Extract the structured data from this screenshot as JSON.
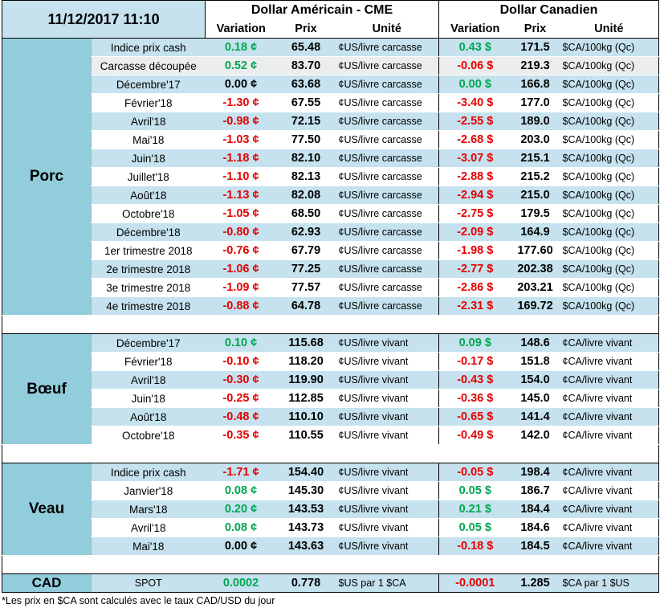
{
  "header": {
    "datetime": "11/12/2017 11:10",
    "usd_title": "Dollar Américain - CME",
    "cad_title": "Dollar Canadien",
    "col_variation": "Variation",
    "col_prix": "Prix",
    "col_unite": "Unité"
  },
  "sections": [
    {
      "name": "Porc",
      "rows": [
        {
          "label": "Indice prix cash",
          "usd_var": "0.18 ¢",
          "usd_sign": "pos",
          "usd_price": "65.48",
          "usd_unit": "¢US/livre carcasse",
          "cad_var": "0.43 $",
          "cad_sign": "pos",
          "cad_price": "171.5",
          "cad_unit": "$CA/100kg (Qc)"
        },
        {
          "label": "Carcasse découpée",
          "usd_var": "0.52 ¢",
          "usd_sign": "pos",
          "usd_price": "83.70",
          "usd_unit": "¢US/livre carcasse",
          "cad_var": "-0.06 $",
          "cad_sign": "neg",
          "cad_price": "219.3",
          "cad_unit": "$CA/100kg (Qc)"
        },
        {
          "label": "Décembre'17",
          "usd_var": "0.00 ¢",
          "usd_sign": "zero",
          "usd_price": "63.68",
          "usd_unit": "¢US/livre carcasse",
          "cad_var": "0.00 $",
          "cad_sign": "pos",
          "cad_price": "166.8",
          "cad_unit": "$CA/100kg (Qc)"
        },
        {
          "label": "Février'18",
          "usd_var": "-1.30 ¢",
          "usd_sign": "neg",
          "usd_price": "67.55",
          "usd_unit": "¢US/livre carcasse",
          "cad_var": "-3.40 $",
          "cad_sign": "neg",
          "cad_price": "177.0",
          "cad_unit": "$CA/100kg (Qc)"
        },
        {
          "label": "Avril'18",
          "usd_var": "-0.98 ¢",
          "usd_sign": "neg",
          "usd_price": "72.15",
          "usd_unit": "¢US/livre carcasse",
          "cad_var": "-2.55 $",
          "cad_sign": "neg",
          "cad_price": "189.0",
          "cad_unit": "$CA/100kg (Qc)"
        },
        {
          "label": "Mai'18",
          "usd_var": "-1.03 ¢",
          "usd_sign": "neg",
          "usd_price": "77.50",
          "usd_unit": "¢US/livre carcasse",
          "cad_var": "-2.68 $",
          "cad_sign": "neg",
          "cad_price": "203.0",
          "cad_unit": "$CA/100kg (Qc)"
        },
        {
          "label": "Juin'18",
          "usd_var": "-1.18 ¢",
          "usd_sign": "neg",
          "usd_price": "82.10",
          "usd_unit": "¢US/livre carcasse",
          "cad_var": "-3.07 $",
          "cad_sign": "neg",
          "cad_price": "215.1",
          "cad_unit": "$CA/100kg (Qc)"
        },
        {
          "label": "Juillet'18",
          "usd_var": "-1.10 ¢",
          "usd_sign": "neg",
          "usd_price": "82.13",
          "usd_unit": "¢US/livre carcasse",
          "cad_var": "-2.88 $",
          "cad_sign": "neg",
          "cad_price": "215.2",
          "cad_unit": "$CA/100kg (Qc)"
        },
        {
          "label": "Août'18",
          "usd_var": "-1.13 ¢",
          "usd_sign": "neg",
          "usd_price": "82.08",
          "usd_unit": "¢US/livre carcasse",
          "cad_var": "-2.94 $",
          "cad_sign": "neg",
          "cad_price": "215.0",
          "cad_unit": "$CA/100kg (Qc)"
        },
        {
          "label": "Octobre'18",
          "usd_var": "-1.05 ¢",
          "usd_sign": "neg",
          "usd_price": "68.50",
          "usd_unit": "¢US/livre carcasse",
          "cad_var": "-2.75 $",
          "cad_sign": "neg",
          "cad_price": "179.5",
          "cad_unit": "$CA/100kg (Qc)"
        },
        {
          "label": "Décembre'18",
          "usd_var": "-0.80 ¢",
          "usd_sign": "neg",
          "usd_price": "62.93",
          "usd_unit": "¢US/livre carcasse",
          "cad_var": "-2.09 $",
          "cad_sign": "neg",
          "cad_price": "164.9",
          "cad_unit": "$CA/100kg (Qc)"
        },
        {
          "label": "1er trimestre 2018",
          "usd_var": "-0.76 ¢",
          "usd_sign": "neg",
          "usd_price": "67.79",
          "usd_unit": "¢US/livre carcasse",
          "cad_var": "-1.98 $",
          "cad_sign": "neg",
          "cad_price": "177.60",
          "cad_unit": "$CA/100kg (Qc)"
        },
        {
          "label": "2e trimestre 2018",
          "usd_var": "-1.06 ¢",
          "usd_sign": "neg",
          "usd_price": "77.25",
          "usd_unit": "¢US/livre carcasse",
          "cad_var": "-2.77 $",
          "cad_sign": "neg",
          "cad_price": "202.38",
          "cad_unit": "$CA/100kg (Qc)"
        },
        {
          "label": "3e trimestre 2018",
          "usd_var": "-1.09 ¢",
          "usd_sign": "neg",
          "usd_price": "77.57",
          "usd_unit": "¢US/livre carcasse",
          "cad_var": "-2.86 $",
          "cad_sign": "neg",
          "cad_price": "203.21",
          "cad_unit": "$CA/100kg (Qc)"
        },
        {
          "label": "4e trimestre 2018",
          "usd_var": "-0.88 ¢",
          "usd_sign": "neg",
          "usd_price": "64.78",
          "usd_unit": "¢US/livre carcasse",
          "cad_var": "-2.31 $",
          "cad_sign": "neg",
          "cad_price": "169.72",
          "cad_unit": "$CA/100kg (Qc)"
        }
      ]
    },
    {
      "name": "Bœuf",
      "rows": [
        {
          "label": "Décembre'17",
          "usd_var": "0.10 ¢",
          "usd_sign": "pos",
          "usd_price": "115.68",
          "usd_unit": "¢US/livre vivant",
          "cad_var": "0.09 $",
          "cad_sign": "pos",
          "cad_price": "148.6",
          "cad_unit": "¢CA/livre vivant"
        },
        {
          "label": "Février'18",
          "usd_var": "-0.10 ¢",
          "usd_sign": "neg",
          "usd_price": "118.20",
          "usd_unit": "¢US/livre vivant",
          "cad_var": "-0.17 $",
          "cad_sign": "neg",
          "cad_price": "151.8",
          "cad_unit": "¢CA/livre vivant"
        },
        {
          "label": "Avril'18",
          "usd_var": "-0.30 ¢",
          "usd_sign": "neg",
          "usd_price": "119.90",
          "usd_unit": "¢US/livre vivant",
          "cad_var": "-0.43 $",
          "cad_sign": "neg",
          "cad_price": "154.0",
          "cad_unit": "¢CA/livre vivant"
        },
        {
          "label": "Juin'18",
          "usd_var": "-0.25 ¢",
          "usd_sign": "neg",
          "usd_price": "112.85",
          "usd_unit": "¢US/livre vivant",
          "cad_var": "-0.36 $",
          "cad_sign": "neg",
          "cad_price": "145.0",
          "cad_unit": "¢CA/livre vivant"
        },
        {
          "label": "Août'18",
          "usd_var": "-0.48 ¢",
          "usd_sign": "neg",
          "usd_price": "110.10",
          "usd_unit": "¢US/livre vivant",
          "cad_var": "-0.65 $",
          "cad_sign": "neg",
          "cad_price": "141.4",
          "cad_unit": "¢CA/livre vivant"
        },
        {
          "label": "Octobre'18",
          "usd_var": "-0.35 ¢",
          "usd_sign": "neg",
          "usd_price": "110.55",
          "usd_unit": "¢US/livre vivant",
          "cad_var": "-0.49 $",
          "cad_sign": "neg",
          "cad_price": "142.0",
          "cad_unit": "¢CA/livre vivant"
        }
      ]
    },
    {
      "name": "Veau",
      "rows": [
        {
          "label": "Indice prix cash",
          "usd_var": "-1.71 ¢",
          "usd_sign": "neg",
          "usd_price": "154.40",
          "usd_unit": "¢US/livre vivant",
          "cad_var": "-0.05 $",
          "cad_sign": "neg",
          "cad_price": "198.4",
          "cad_unit": "¢CA/livre vivant"
        },
        {
          "label": "Janvier'18",
          "usd_var": "0.08 ¢",
          "usd_sign": "pos",
          "usd_price": "145.30",
          "usd_unit": "¢US/livre vivant",
          "cad_var": "0.05 $",
          "cad_sign": "pos",
          "cad_price": "186.7",
          "cad_unit": "¢CA/livre vivant"
        },
        {
          "label": "Mars'18",
          "usd_var": "0.20 ¢",
          "usd_sign": "pos",
          "usd_price": "143.53",
          "usd_unit": "¢US/livre vivant",
          "cad_var": "0.21 $",
          "cad_sign": "pos",
          "cad_price": "184.4",
          "cad_unit": "¢CA/livre vivant"
        },
        {
          "label": "Avril'18",
          "usd_var": "0.08 ¢",
          "usd_sign": "pos",
          "usd_price": "143.73",
          "usd_unit": "¢US/livre vivant",
          "cad_var": "0.05 $",
          "cad_sign": "pos",
          "cad_price": "184.6",
          "cad_unit": "¢CA/livre vivant"
        },
        {
          "label": "Mai'18",
          "usd_var": "0.00 ¢",
          "usd_sign": "zero",
          "usd_price": "143.63",
          "usd_unit": "¢US/livre vivant",
          "cad_var": "-0.18 $",
          "cad_sign": "neg",
          "cad_price": "184.5",
          "cad_unit": "¢CA/livre vivant"
        }
      ]
    }
  ],
  "cad": {
    "name": "CAD",
    "label": "SPOT",
    "usd_var": "0.0002",
    "usd_sign": "pos",
    "usd_price": "0.778",
    "usd_unit": "$US par 1 $CA",
    "cad_var": "-0.0001",
    "cad_sign": "neg",
    "cad_price": "1.285",
    "cad_unit": "$CA par 1 $US"
  },
  "footnote": "*Les  prix en $CA sont calculés avec le taux CAD/USD du jour"
}
